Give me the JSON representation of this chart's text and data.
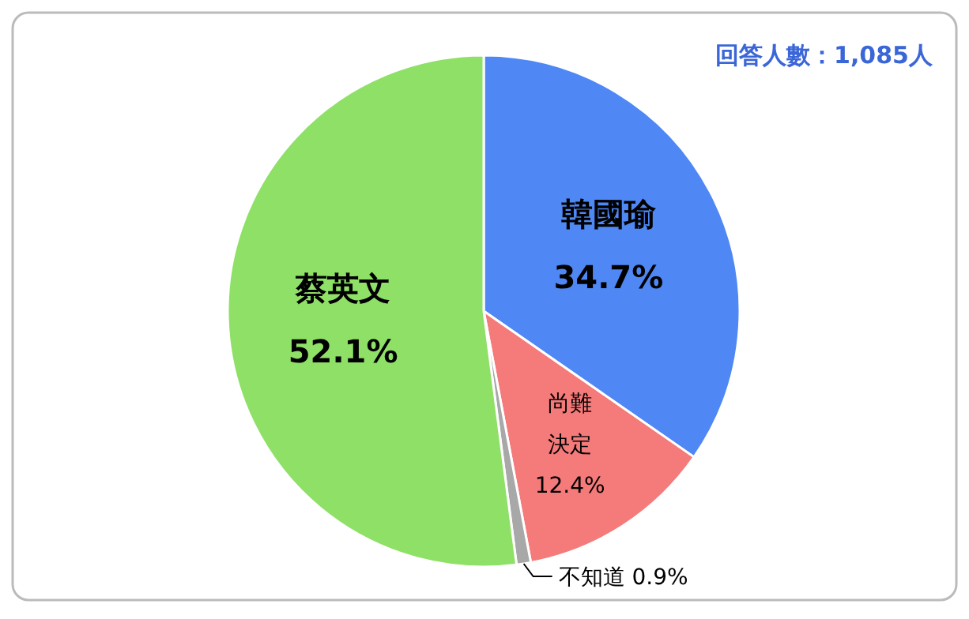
{
  "chart_data": {
    "type": "pie",
    "categories": [
      "韓國瑜",
      "尚難決定",
      "不知道",
      "蔡英文"
    ],
    "values": [
      34.7,
      12.4,
      0.9,
      52.1
    ],
    "colors": [
      "#4f88f4",
      "#f57a7a",
      "#a8a8a8",
      "#8fe066"
    ],
    "value_labels": [
      "34.7%",
      "12.4%",
      "0.9%",
      "52.1%"
    ],
    "annotations": [
      "回答人數：1,085人"
    ]
  }
}
